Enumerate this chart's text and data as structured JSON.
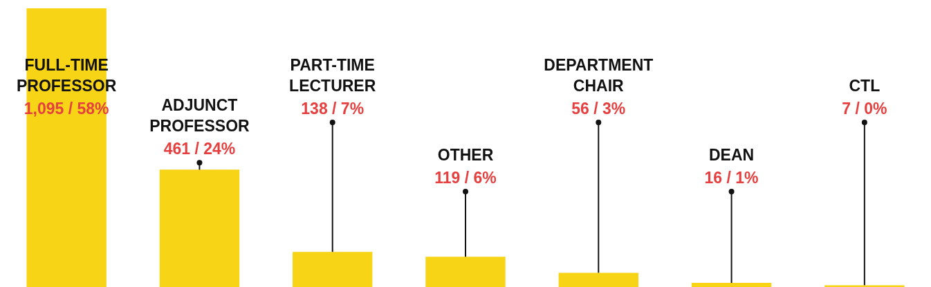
{
  "chart_data": {
    "type": "bar",
    "categories": [
      "FULL-TIME PROFESSOR",
      "ADJUNCT PROFESSOR",
      "PART-TIME LECTURER",
      "OTHER",
      "DEPARTMENT CHAIR",
      "DEAN",
      "CTL"
    ],
    "values": [
      1095,
      461,
      138,
      119,
      56,
      16,
      7
    ],
    "value_labels": [
      "1,095 / 58%",
      "461 / 24%",
      "138 / 7%",
      "119 / 6%",
      "56 / 3%",
      "16 / 1%",
      "7 / 0%"
    ],
    "color": "#f7d416"
  }
}
